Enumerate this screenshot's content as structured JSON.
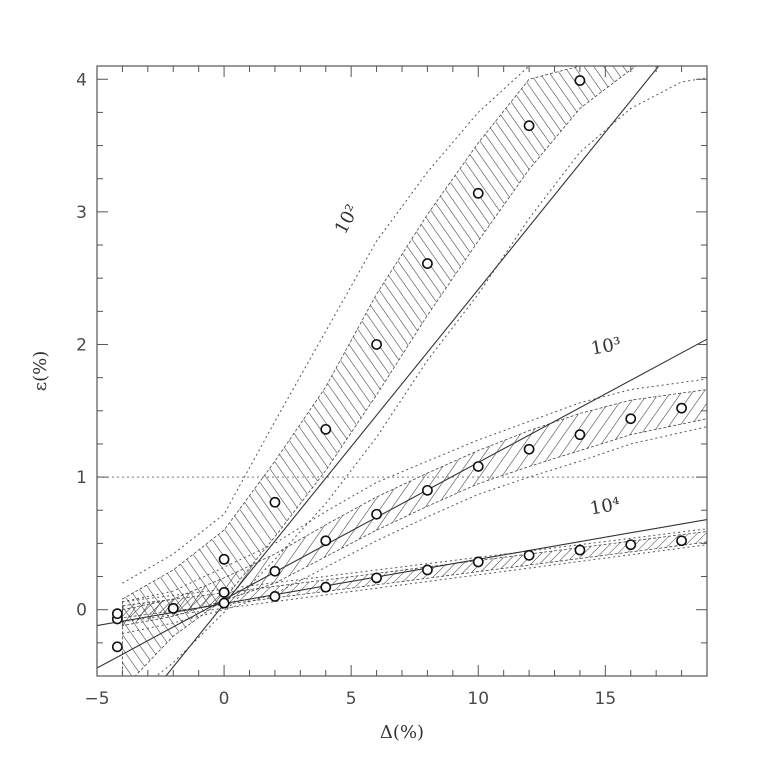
{
  "chart_data": {
    "type": "scatter",
    "xlabel": "Δ(%)",
    "ylabel": "ε(%)",
    "xlim": [
      -5,
      19
    ],
    "ylim": [
      -0.5,
      4.1
    ],
    "xticks": [
      -5,
      0,
      5,
      10,
      15
    ],
    "yticks": [
      0,
      1,
      2,
      3,
      4
    ],
    "reference_line_y": 1,
    "series": [
      {
        "name": "10²",
        "points": {
          "x": [
            -4.2,
            0,
            2,
            4,
            6,
            8,
            10,
            12,
            14
          ],
          "y": [
            -0.28,
            0.38,
            0.81,
            1.36,
            2.0,
            2.61,
            3.14,
            3.65,
            3.99
          ]
        },
        "model": {
          "x": [
            -2.5,
            19
          ],
          "y": [
            -0.55,
            4.55
          ]
        },
        "band": {
          "x": [
            -4,
            -2,
            0,
            2,
            4,
            6,
            8,
            10,
            12,
            14,
            15.5,
            16.2
          ],
          "lower": [
            -0.6,
            -0.2,
            0.08,
            0.55,
            1.05,
            1.62,
            2.22,
            2.78,
            3.32,
            3.78,
            4.0,
            4.1
          ],
          "upper": [
            0.08,
            0.3,
            0.6,
            1.12,
            1.68,
            2.38,
            2.98,
            3.52,
            4.0,
            4.1,
            4.1,
            4.1
          ]
        },
        "outer": {
          "x": [
            -4,
            -2,
            0,
            2,
            4,
            6,
            8,
            10,
            12,
            14,
            16,
            18,
            19
          ],
          "lower": [
            -0.7,
            -0.4,
            -0.02,
            0.38,
            0.8,
            1.3,
            1.88,
            2.38,
            2.95,
            3.45,
            3.78,
            3.98,
            4.01
          ],
          "upper": [
            0.2,
            0.42,
            0.72,
            1.42,
            2.1,
            2.78,
            3.3,
            3.75,
            4.1,
            4.1,
            4.1,
            4.1,
            4.1
          ]
        }
      },
      {
        "name": "10³",
        "points": {
          "x": [
            -4.2,
            -2,
            0,
            2,
            4,
            6,
            8,
            10,
            12,
            14,
            16,
            18
          ],
          "y": [
            -0.07,
            0.01,
            0.13,
            0.29,
            0.52,
            0.72,
            0.9,
            1.08,
            1.21,
            1.32,
            1.44,
            1.52
          ]
        },
        "model": {
          "x": [
            -5,
            19
          ],
          "y": [
            -0.44,
            2.04
          ]
        },
        "band": {
          "x": [
            -4,
            -2,
            0,
            2,
            4,
            6,
            8,
            10,
            12,
            14,
            16,
            19
          ],
          "lower": [
            -0.12,
            -0.05,
            0.07,
            0.2,
            0.4,
            0.6,
            0.78,
            0.95,
            1.08,
            1.2,
            1.32,
            1.44
          ],
          "upper": [
            0.0,
            0.08,
            0.24,
            0.42,
            0.64,
            0.85,
            1.03,
            1.2,
            1.35,
            1.48,
            1.58,
            1.66
          ]
        },
        "outer": {
          "x": [
            -4,
            -2,
            0,
            2,
            4,
            6,
            8,
            10,
            12,
            14,
            16,
            19
          ],
          "lower": [
            -0.18,
            -0.1,
            0.0,
            0.12,
            0.32,
            0.52,
            0.7,
            0.87,
            1.0,
            1.12,
            1.25,
            1.38
          ],
          "upper": [
            0.06,
            0.14,
            0.32,
            0.5,
            0.74,
            0.96,
            1.12,
            1.28,
            1.42,
            1.56,
            1.66,
            1.74
          ]
        }
      },
      {
        "name": "10⁴",
        "points": {
          "x": [
            -4.2,
            -2,
            0,
            2,
            4,
            6,
            8,
            10,
            12,
            14,
            16,
            18
          ],
          "y": [
            -0.03,
            0.01,
            0.05,
            0.1,
            0.17,
            0.24,
            0.3,
            0.36,
            0.41,
            0.45,
            0.49,
            0.52
          ]
        },
        "model": {
          "x": [
            -5,
            19
          ],
          "y": [
            -0.12,
            0.68
          ]
        },
        "band": {
          "x": [
            -4,
            19
          ],
          "lower": [
            -0.06,
            0.51
          ],
          "upper": [
            0.03,
            0.59
          ]
        },
        "outer": {
          "x": [
            -4,
            19
          ],
          "lower": [
            -0.09,
            0.49
          ],
          "upper": [
            0.06,
            0.61
          ]
        }
      }
    ]
  }
}
